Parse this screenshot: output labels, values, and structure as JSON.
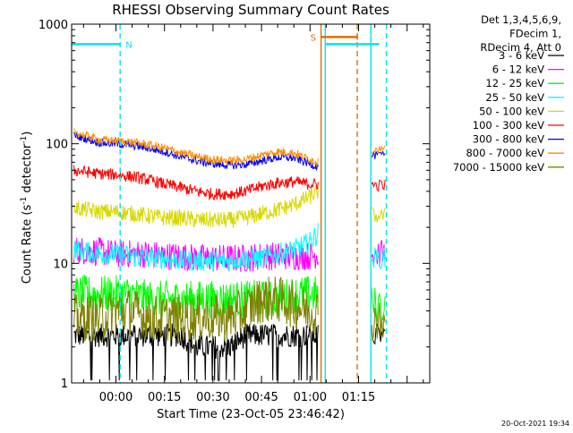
{
  "chart_data": {
    "type": "line",
    "title": "RHESSI Observing Summary Count Rates",
    "xlabel": "Start Time (23-Oct-05 23:46:42)",
    "ylabel_main": "Count Rate (s",
    "ylabel_sup1": "-1",
    "ylabel_mid": " detector",
    "ylabel_sup2": "-1",
    "ylabel_end": ")",
    "y_scale": "log",
    "ylim": [
      1,
      1000
    ],
    "y_ticks": [
      {
        "value": 1,
        "label": "1"
      },
      {
        "value": 10,
        "label": "10"
      },
      {
        "value": 100,
        "label": "100"
      },
      {
        "value": 1000,
        "label": "1000"
      }
    ],
    "x_range_min": [
      -13.7,
      97
    ],
    "x_ticks": [
      {
        "value": 0,
        "label": "00:00"
      },
      {
        "value": 15,
        "label": "00:15"
      },
      {
        "value": 30,
        "label": "00:30"
      },
      {
        "value": 45,
        "label": "00:45"
      },
      {
        "value": 60,
        "label": "01:00"
      },
      {
        "value": 75,
        "label": "01:15"
      }
    ],
    "legend_placement": "top-right outside plot",
    "legend_header": [
      "Det 1,3,4,5,6,9,",
      "FDecim 1,",
      "RDecim 4, Att 0"
    ],
    "series": [
      {
        "name": "3 - 6 keV",
        "color": "#000000",
        "x": [
          -13,
          -5,
          0,
          5,
          10,
          15,
          20,
          25,
          30,
          35,
          40,
          45,
          50,
          55,
          60,
          62.5
        ],
        "values": [
          2.5,
          2.5,
          2.5,
          2.5,
          2.5,
          2.5,
          2.5,
          2,
          2,
          2,
          2.5,
          2.5,
          2.5,
          2.5,
          2.5,
          2.5
        ]
      },
      {
        "name": "6 - 12 keV",
        "color": "#ff00ff",
        "x": [
          -13,
          -5,
          0,
          5,
          10,
          15,
          20,
          25,
          30,
          35,
          40,
          45,
          50,
          55,
          60,
          62.5
        ],
        "values": [
          13,
          12.5,
          12,
          12,
          12,
          11.5,
          11.5,
          11,
          11,
          11,
          11,
          11.5,
          11.5,
          11.5,
          11.5,
          12
        ]
      },
      {
        "name": "12 - 25 keV",
        "color": "#00ff00",
        "x": [
          -13,
          -5,
          0,
          5,
          10,
          15,
          20,
          25,
          30,
          35,
          40,
          45,
          50,
          55,
          60,
          62.5
        ],
        "values": [
          5.5,
          5.5,
          5.5,
          5.5,
          5,
          5,
          5,
          5,
          5,
          5,
          5,
          5,
          5,
          5.5,
          5.5,
          5.5
        ]
      },
      {
        "name": "25 - 50 keV",
        "color": "#00ffff",
        "x": [
          -13,
          -5,
          0,
          5,
          10,
          15,
          20,
          25,
          30,
          35,
          40,
          45,
          50,
          55,
          60,
          62.5
        ],
        "values": [
          13,
          12,
          12,
          11.5,
          11,
          11,
          10.5,
          10.5,
          10.5,
          10.5,
          11,
          11,
          12,
          13,
          15,
          18
        ]
      },
      {
        "name": "50 - 100 keV",
        "color": "#d8d800",
        "x": [
          -13,
          -5,
          0,
          5,
          10,
          15,
          20,
          25,
          30,
          35,
          40,
          45,
          50,
          55,
          60,
          62.5
        ],
        "values": [
          29,
          27,
          27,
          26,
          25,
          24,
          24,
          23,
          23,
          23,
          24,
          26,
          28,
          31,
          36,
          40
        ]
      },
      {
        "name": "100 - 300 keV",
        "color": "#ff0000",
        "x": [
          -13,
          -5,
          0,
          5,
          10,
          15,
          20,
          25,
          30,
          35,
          40,
          45,
          50,
          55,
          60,
          62.5
        ],
        "values": [
          60,
          56,
          55,
          53,
          50,
          46,
          43,
          40,
          38,
          38,
          40,
          44,
          47,
          48,
          46,
          46
        ]
      },
      {
        "name": "300 - 800 keV",
        "color": "#0000ff",
        "x": [
          -13,
          -5,
          0,
          5,
          10,
          15,
          20,
          25,
          30,
          35,
          40,
          45,
          50,
          55,
          60,
          62.5
        ],
        "values": [
          118,
          102,
          100,
          97,
          92,
          86,
          78,
          72,
          68,
          66,
          67,
          72,
          77,
          76,
          68,
          64
        ]
      },
      {
        "name": "800 - 7000 keV",
        "color": "#ff8c00",
        "x": [
          -13,
          -5,
          0,
          5,
          10,
          15,
          20,
          25,
          30,
          35,
          40,
          45,
          50,
          55,
          60,
          62.5
        ],
        "values": [
          125,
          108,
          106,
          103,
          98,
          92,
          84,
          78,
          74,
          72,
          74,
          80,
          86,
          84,
          74,
          70
        ]
      },
      {
        "name": "7000 - 15000 keV",
        "color": "#808000",
        "x": [
          -13,
          -5,
          0,
          5,
          10,
          15,
          20,
          25,
          30,
          35,
          40,
          45,
          50,
          55,
          60,
          62.5
        ],
        "values": [
          3.5,
          3.5,
          4,
          4,
          3.5,
          3.5,
          3.5,
          3.5,
          3.5,
          3.5,
          4,
          5,
          5,
          4.5,
          4,
          4
        ]
      }
    ],
    "post_gap_values_x": 79,
    "post_gap_values": [
      2.5,
      12,
      4.5,
      11,
      25,
      45,
      80,
      90,
      3.5
    ],
    "intervals": [
      {
        "label": "N",
        "color": "#00e5ee",
        "x_start": -13.7,
        "x_end": 1.3,
        "level": 680
      },
      {
        "label": "",
        "color": "#00e5ee",
        "x_start": 64.7,
        "x_end": 81.4,
        "level": 680
      },
      {
        "label": "S",
        "color": "#e07000",
        "x_start": 63.4,
        "x_end": 74.6,
        "level": 780
      }
    ],
    "vertical_lines": [
      {
        "x": 1.3,
        "color": "#00e5ee",
        "style": "dashed"
      },
      {
        "x": 63.4,
        "color": "#e07000",
        "style": "solid"
      },
      {
        "x": 64.7,
        "color": "#00e5ee",
        "style": "solid"
      },
      {
        "x": 74.6,
        "color": "#e07000",
        "style": "dashed"
      },
      {
        "x": 78.8,
        "color": "#00e5ee",
        "style": "solid"
      },
      {
        "x": 83.6,
        "color": "#00e5ee",
        "style": "dashed"
      }
    ],
    "timestamp": "20-Oct-2021 19:34"
  }
}
